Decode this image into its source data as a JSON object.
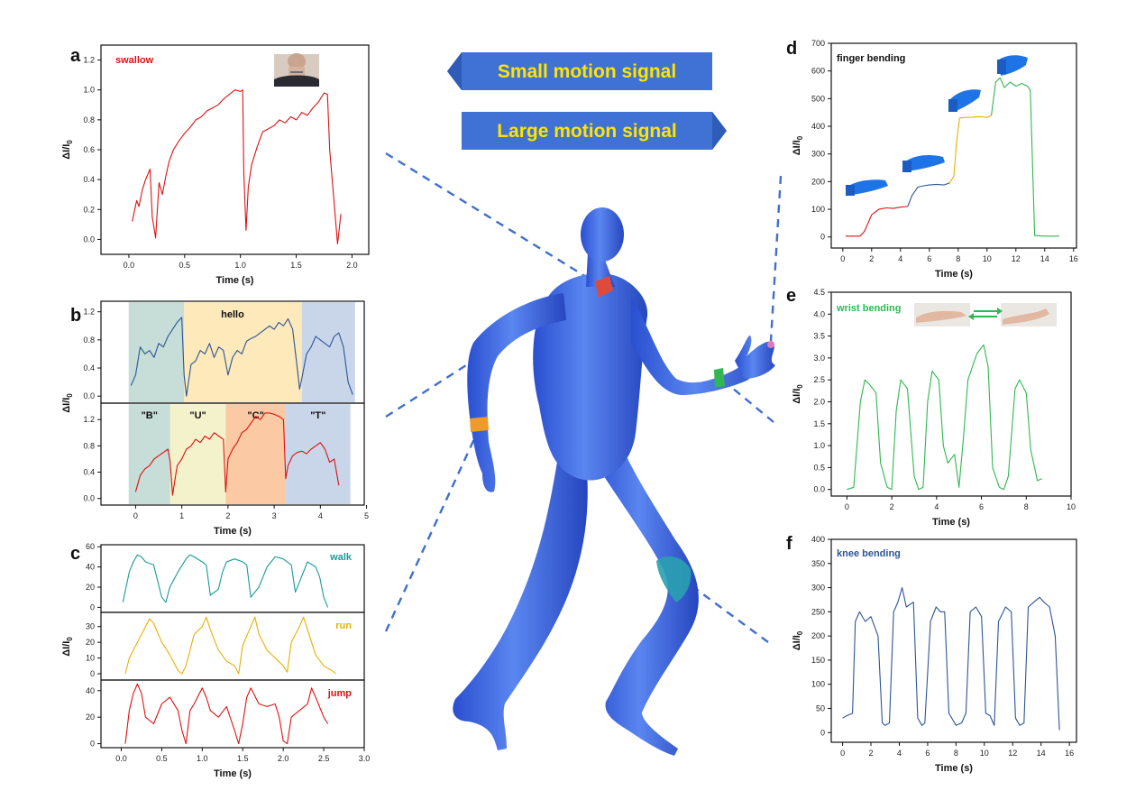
{
  "banners": {
    "small": "Small motion signal",
    "large": "Large motion signal",
    "fill": "#3f72d4",
    "text_color": "#ffe400"
  },
  "body_figure": {
    "color": "#3c64e6",
    "sensor_colors": [
      "#e04a3a",
      "#f09a2a",
      "#2fb84f",
      "#2aa0b0",
      "#e07ab8"
    ]
  },
  "chart_data": [
    {
      "id": "a",
      "type": "line",
      "label": "swallow",
      "label_color": "#e01010",
      "xlabel": "Time (s)",
      "ylabel": "ΔI/I0",
      "xlim": [
        -0.25,
        2.15
      ],
      "ylim": [
        -0.1,
        1.3
      ],
      "xticks": [
        0,
        0.5,
        1.0,
        1.5,
        2.0
      ],
      "yticks": [
        0.0,
        0.2,
        0.4,
        0.6,
        0.8,
        1.0,
        1.2
      ],
      "series": [
        {
          "color": "#dd1111",
          "x": [
            0.03,
            0.07,
            0.09,
            0.12,
            0.15,
            0.19,
            0.21,
            0.24,
            0.27,
            0.3,
            0.33,
            0.36,
            0.4,
            0.45,
            0.5,
            0.55,
            0.6,
            0.65,
            0.7,
            0.75,
            0.8,
            0.85,
            0.9,
            0.95,
            1.0,
            1.02,
            1.03,
            1.05,
            1.07,
            1.1,
            1.15,
            1.2,
            1.25,
            1.3,
            1.35,
            1.4,
            1.45,
            1.5,
            1.55,
            1.6,
            1.65,
            1.7,
            1.75,
            1.78,
            1.8,
            1.85,
            1.87,
            1.9
          ],
          "y": [
            0.12,
            0.26,
            0.22,
            0.33,
            0.4,
            0.47,
            0.15,
            0.01,
            0.38,
            0.3,
            0.42,
            0.52,
            0.6,
            0.66,
            0.71,
            0.75,
            0.8,
            0.82,
            0.86,
            0.88,
            0.9,
            0.94,
            0.97,
            1.0,
            0.99,
            1.0,
            0.45,
            0.06,
            0.35,
            0.5,
            0.62,
            0.72,
            0.74,
            0.76,
            0.8,
            0.78,
            0.82,
            0.8,
            0.85,
            0.83,
            0.88,
            0.92,
            0.98,
            0.97,
            0.6,
            0.15,
            -0.03,
            0.17
          ]
        }
      ]
    },
    {
      "id": "b-top",
      "type": "line",
      "label": "hello",
      "label_color": "#111",
      "xlim": [
        -0.75,
        4.95
      ],
      "ylim": [
        -0.1,
        1.35
      ],
      "yticks": [
        0.0,
        0.4,
        0.8,
        1.2
      ],
      "bands": [
        {
          "x0": -0.15,
          "x1": 1.05,
          "color": "#c6ddd8"
        },
        {
          "x0": 1.05,
          "x1": 3.6,
          "color": "#fde9ba"
        },
        {
          "x0": 3.6,
          "x1": 4.75,
          "color": "#c9d6ea"
        }
      ],
      "series": [
        {
          "color": "#2c5596",
          "x": [
            -0.1,
            0.0,
            0.1,
            0.2,
            0.3,
            0.4,
            0.5,
            0.6,
            0.7,
            0.8,
            0.9,
            1.0,
            1.05,
            1.1,
            1.2,
            1.3,
            1.4,
            1.5,
            1.6,
            1.7,
            1.8,
            1.9,
            2.0,
            2.1,
            2.2,
            2.3,
            2.4,
            2.5,
            2.6,
            2.7,
            2.8,
            2.9,
            3.0,
            3.1,
            3.2,
            3.3,
            3.4,
            3.5,
            3.55,
            3.6,
            3.7,
            3.8,
            3.9,
            4.0,
            4.1,
            4.2,
            4.3,
            4.4,
            4.5,
            4.6,
            4.7
          ],
          "y": [
            0.15,
            0.3,
            0.7,
            0.6,
            0.65,
            0.55,
            0.75,
            0.7,
            0.85,
            0.95,
            1.05,
            1.12,
            0.3,
            0.0,
            0.45,
            0.5,
            0.65,
            0.6,
            0.75,
            0.55,
            0.7,
            0.65,
            0.3,
            0.55,
            0.65,
            0.6,
            0.78,
            0.82,
            0.85,
            0.9,
            0.95,
            1.0,
            0.95,
            1.05,
            1.0,
            1.1,
            0.95,
            0.4,
            0.1,
            0.25,
            0.6,
            0.7,
            0.85,
            0.8,
            0.75,
            0.7,
            0.85,
            0.9,
            0.7,
            0.2,
            0.02
          ]
        }
      ]
    },
    {
      "id": "b-bottom",
      "type": "line",
      "label_color": "#111",
      "xlabel": "Time (s)",
      "ylabel": "ΔI/I0",
      "xlim": [
        -0.75,
        4.95
      ],
      "ylim": [
        -0.1,
        1.45
      ],
      "xticks": [
        0,
        1,
        2,
        3,
        4,
        5
      ],
      "yticks": [
        0.0,
        0.4,
        0.8,
        1.2
      ],
      "bands": [
        {
          "x0": -0.15,
          "x1": 0.75,
          "color": "#c6ddd8",
          "label": "\"B\""
        },
        {
          "x0": 0.75,
          "x1": 1.95,
          "color": "#f4f2cb",
          "label": "\"U\""
        },
        {
          "x0": 1.95,
          "x1": 3.25,
          "color": "#fbc9a3",
          "label": "\"C\""
        },
        {
          "x0": 3.25,
          "x1": 4.65,
          "color": "#c9d6ea",
          "label": "\"T\""
        }
      ],
      "series": [
        {
          "color": "#dd1111",
          "x": [
            0.0,
            0.1,
            0.2,
            0.3,
            0.4,
            0.5,
            0.6,
            0.7,
            0.75,
            0.8,
            0.9,
            1.0,
            1.1,
            1.2,
            1.3,
            1.4,
            1.5,
            1.6,
            1.7,
            1.8,
            1.9,
            1.95,
            2.0,
            2.1,
            2.2,
            2.3,
            2.4,
            2.5,
            2.6,
            2.7,
            2.8,
            2.9,
            3.0,
            3.1,
            3.2,
            3.25,
            3.3,
            3.4,
            3.5,
            3.6,
            3.7,
            3.8,
            3.9,
            4.0,
            4.1,
            4.2,
            4.3,
            4.4
          ],
          "y": [
            0.1,
            0.35,
            0.45,
            0.5,
            0.6,
            0.65,
            0.7,
            0.75,
            0.55,
            0.05,
            0.5,
            0.6,
            0.75,
            0.8,
            0.9,
            0.85,
            0.95,
            0.9,
            1.0,
            0.95,
            0.9,
            0.1,
            0.6,
            0.75,
            0.85,
            1.0,
            1.05,
            1.15,
            1.25,
            1.2,
            1.3,
            1.3,
            1.28,
            1.25,
            1.2,
            0.3,
            0.5,
            0.65,
            0.7,
            0.72,
            0.68,
            0.75,
            0.8,
            0.85,
            0.75,
            0.55,
            0.6,
            0.2
          ]
        }
      ]
    },
    {
      "id": "c-walk",
      "type": "line",
      "label": "walk",
      "label_color": "#1a9a9a",
      "xlim": [
        -0.25,
        3.0
      ],
      "ylim": [
        -5,
        62
      ],
      "yticks": [
        0,
        20,
        40,
        60
      ],
      "series": [
        {
          "color": "#1a9a9a",
          "x": [
            0.02,
            0.1,
            0.15,
            0.2,
            0.25,
            0.3,
            0.4,
            0.5,
            0.55,
            0.6,
            0.7,
            0.8,
            0.85,
            0.9,
            1.0,
            1.05,
            1.1,
            1.2,
            1.25,
            1.3,
            1.4,
            1.5,
            1.55,
            1.6,
            1.7,
            1.8,
            1.85,
            1.9,
            2.0,
            2.1,
            2.15,
            2.2,
            2.3,
            2.4,
            2.45,
            2.5,
            2.55
          ],
          "y": [
            5,
            35,
            45,
            52,
            50,
            45,
            42,
            10,
            5,
            20,
            35,
            48,
            52,
            50,
            45,
            42,
            12,
            18,
            35,
            45,
            48,
            45,
            42,
            10,
            20,
            40,
            45,
            50,
            48,
            42,
            15,
            25,
            45,
            40,
            30,
            10,
            0
          ]
        }
      ]
    },
    {
      "id": "c-run",
      "type": "line",
      "label": "run",
      "label_color": "#e8b000",
      "xlim": [
        -0.25,
        3.0
      ],
      "ylim": [
        -4,
        39
      ],
      "yticks": [
        0,
        10,
        20,
        30
      ],
      "series": [
        {
          "color": "#e8b000",
          "x": [
            0.05,
            0.1,
            0.2,
            0.3,
            0.35,
            0.4,
            0.5,
            0.6,
            0.7,
            0.75,
            0.8,
            0.9,
            1.0,
            1.05,
            1.1,
            1.2,
            1.3,
            1.4,
            1.45,
            1.5,
            1.6,
            1.65,
            1.7,
            1.8,
            1.9,
            2.0,
            2.05,
            2.1,
            2.2,
            2.25,
            2.3,
            2.4,
            2.5,
            2.6,
            2.65
          ],
          "y": [
            0,
            10,
            20,
            30,
            35,
            32,
            20,
            12,
            2,
            0,
            5,
            25,
            30,
            36,
            28,
            15,
            8,
            5,
            0,
            18,
            30,
            36,
            25,
            15,
            10,
            5,
            1,
            20,
            30,
            36,
            28,
            12,
            5,
            2,
            0
          ]
        }
      ]
    },
    {
      "id": "c-jump",
      "type": "line",
      "label": "jump",
      "label_color": "#dd1111",
      "xlabel": "Time (s)",
      "xlim": [
        -0.25,
        3.0
      ],
      "ylim": [
        -3,
        48
      ],
      "xticks": [
        0.0,
        0.5,
        1.0,
        1.5,
        2.0,
        2.5,
        3.0
      ],
      "yticks": [
        0,
        20,
        40
      ],
      "series": [
        {
          "color": "#dd1111",
          "x": [
            0.05,
            0.1,
            0.15,
            0.2,
            0.25,
            0.3,
            0.4,
            0.5,
            0.6,
            0.7,
            0.75,
            0.8,
            0.85,
            0.9,
            1.0,
            1.05,
            1.1,
            1.2,
            1.3,
            1.4,
            1.45,
            1.5,
            1.55,
            1.6,
            1.7,
            1.8,
            1.9,
            1.95,
            2.0,
            2.05,
            2.1,
            2.2,
            2.3,
            2.35,
            2.4,
            2.5,
            2.55
          ],
          "y": [
            0,
            25,
            38,
            45,
            38,
            20,
            15,
            30,
            35,
            25,
            10,
            0,
            25,
            30,
            42,
            35,
            25,
            20,
            28,
            10,
            0,
            15,
            35,
            42,
            30,
            28,
            30,
            20,
            2,
            0,
            20,
            25,
            30,
            42,
            35,
            20,
            15
          ]
        }
      ]
    },
    {
      "id": "d",
      "type": "line",
      "label": "finger bending",
      "label_color": "#111",
      "xlabel": "Time (s)",
      "ylabel": "ΔI/I0",
      "xlim": [
        -0.8,
        16.2
      ],
      "ylim": [
        -40,
        700
      ],
      "xticks": [
        0,
        2,
        4,
        6,
        8,
        10,
        12,
        14,
        16
      ],
      "yticks": [
        0,
        100,
        200,
        300,
        400,
        500,
        600,
        700
      ],
      "series": [
        {
          "color": "#dd1111",
          "x": [
            0.2,
            1.2,
            1.5,
            2.0,
            2.5,
            3.0,
            3.5,
            4.0,
            4.5
          ],
          "y": [
            3,
            3,
            20,
            80,
            100,
            105,
            103,
            108,
            110
          ]
        },
        {
          "color": "#2c5596",
          "x": [
            4.5,
            4.8,
            5.2,
            5.6,
            6.0,
            6.5,
            7.0,
            7.4
          ],
          "y": [
            110,
            150,
            180,
            185,
            188,
            190,
            188,
            195
          ]
        },
        {
          "color": "#e8b000",
          "x": [
            7.4,
            7.7,
            7.9,
            8.1,
            8.5,
            9.0,
            9.5,
            10.0,
            10.3
          ],
          "y": [
            195,
            220,
            350,
            430,
            432,
            433,
            435,
            432,
            440
          ]
        },
        {
          "color": "#2fb84f",
          "x": [
            10.3,
            10.6,
            10.9,
            11.2,
            11.6,
            12.0,
            12.4,
            12.8,
            13.0,
            13.3,
            14.0,
            15.0
          ],
          "y": [
            440,
            560,
            575,
            540,
            560,
            545,
            555,
            545,
            530,
            5,
            3,
            3
          ]
        }
      ]
    },
    {
      "id": "e",
      "type": "line",
      "label": "wrist bending",
      "label_color": "#2fb84f",
      "xlabel": "Time (s)",
      "ylabel": "ΔI/I0",
      "xlim": [
        -0.7,
        10.0
      ],
      "ylim": [
        -0.15,
        4.5
      ],
      "xticks": [
        0,
        2,
        4,
        6,
        8,
        10
      ],
      "yticks": [
        0.0,
        0.5,
        1.0,
        1.5,
        2.0,
        2.5,
        3.0,
        3.5,
        4.0,
        4.5
      ],
      "series": [
        {
          "color": "#2fb84f",
          "x": [
            0.0,
            0.3,
            0.6,
            0.8,
            1.0,
            1.3,
            1.5,
            1.8,
            2.0,
            2.2,
            2.4,
            2.7,
            3.0,
            3.2,
            3.4,
            3.6,
            3.8,
            4.1,
            4.3,
            4.5,
            4.8,
            5.0,
            5.2,
            5.4,
            5.6,
            5.8,
            6.1,
            6.3,
            6.5,
            6.8,
            7.0,
            7.2,
            7.5,
            7.7,
            8.0,
            8.2,
            8.5,
            8.7
          ],
          "y": [
            0.0,
            0.05,
            2.0,
            2.5,
            2.4,
            2.2,
            0.6,
            0.05,
            0.0,
            1.8,
            2.5,
            2.3,
            0.3,
            0.0,
            0.05,
            2.0,
            2.7,
            2.5,
            1.0,
            0.6,
            0.8,
            0.05,
            1.2,
            2.5,
            2.8,
            3.1,
            3.3,
            2.8,
            0.5,
            0.05,
            0.0,
            0.3,
            2.3,
            2.5,
            2.2,
            0.9,
            0.2,
            0.25
          ]
        }
      ]
    },
    {
      "id": "f",
      "type": "line",
      "label": "knee bending",
      "label_color": "#2c5596",
      "xlabel": "Time (s)",
      "ylabel": "ΔI/I0",
      "xlim": [
        -0.8,
        16.5
      ],
      "ylim": [
        -20,
        400
      ],
      "xticks": [
        0,
        2,
        4,
        6,
        8,
        10,
        12,
        14,
        16
      ],
      "yticks": [
        0,
        50,
        100,
        150,
        200,
        250,
        300,
        350,
        400
      ],
      "series": [
        {
          "color": "#2c5596",
          "x": [
            0.0,
            0.3,
            0.7,
            0.9,
            1.2,
            1.6,
            2.0,
            2.5,
            2.8,
            3.0,
            3.3,
            3.6,
            3.9,
            4.2,
            4.5,
            5.0,
            5.3,
            5.6,
            5.8,
            6.2,
            6.6,
            6.9,
            7.2,
            7.5,
            8.0,
            8.4,
            8.7,
            9.0,
            9.4,
            9.8,
            10.1,
            10.4,
            10.7,
            11.0,
            11.5,
            11.9,
            12.2,
            12.5,
            12.8,
            13.1,
            13.5,
            13.9,
            14.2,
            14.6,
            15.0,
            15.3
          ],
          "y": [
            30,
            35,
            40,
            230,
            250,
            230,
            240,
            200,
            20,
            15,
            20,
            250,
            270,
            300,
            260,
            270,
            30,
            15,
            20,
            230,
            260,
            250,
            250,
            40,
            15,
            20,
            40,
            250,
            260,
            240,
            40,
            35,
            15,
            230,
            260,
            250,
            30,
            15,
            20,
            260,
            270,
            280,
            270,
            260,
            200,
            5
          ]
        }
      ]
    }
  ]
}
